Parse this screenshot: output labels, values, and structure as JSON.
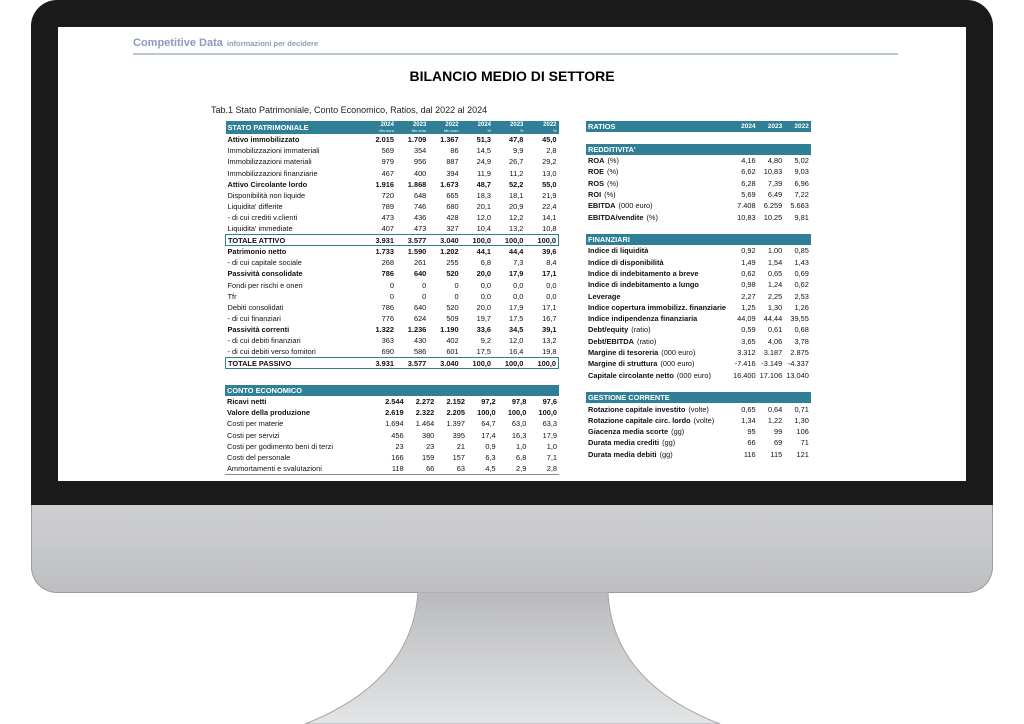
{
  "header": {
    "brand": "Competitive Data",
    "tagline": "informazioni per decidere",
    "title": "BILANCIO MEDIO DI SETTORE",
    "subtitle": "Tab.1 Stato Patrimoniale, Conto Economico, Ratios, dal 2022 al 2024"
  },
  "stato_patrimoniale": {
    "title": "STATO PATRIMONIALE",
    "columns": [
      {
        "year": "2024",
        "unit": "Mn euro"
      },
      {
        "year": "2023",
        "unit": "Mn euro"
      },
      {
        "year": "2022",
        "unit": "Mn euro"
      },
      {
        "year": "2024",
        "unit": "%"
      },
      {
        "year": "2023",
        "unit": "%"
      },
      {
        "year": "2022",
        "unit": "%"
      }
    ],
    "rows": [
      {
        "label": "Attivo immobilizzato",
        "style": "b",
        "values": [
          "2.015",
          "1.709",
          "1.367",
          "51,3",
          "47,8",
          "45,0"
        ]
      },
      {
        "label": "Immobilizzazioni immateriali",
        "values": [
          "569",
          "354",
          "86",
          "14,5",
          "9,9",
          "2,8"
        ]
      },
      {
        "label": "Immobilizzazioni materiali",
        "values": [
          "979",
          "956",
          "887",
          "24,9",
          "26,7",
          "29,2"
        ]
      },
      {
        "label": "Immobilizzazioni finanziarie",
        "values": [
          "467",
          "400",
          "394",
          "11,9",
          "11,2",
          "13,0"
        ]
      },
      {
        "label": "Attivo Circolante  lordo",
        "style": "b",
        "values": [
          "1.916",
          "1.868",
          "1.673",
          "48,7",
          "52,2",
          "55,0"
        ]
      },
      {
        "label": "Disponibilità non liquide",
        "values": [
          "720",
          "648",
          "665",
          "18,3",
          "18,1",
          "21,9"
        ]
      },
      {
        "label": "Liquidita'  differite",
        "values": [
          "789",
          "746",
          "680",
          "20,1",
          "20,9",
          "22,4"
        ]
      },
      {
        "label": " - di cui crediti v.clienti",
        "values": [
          "473",
          "436",
          "428",
          "12,0",
          "12,2",
          "14,1"
        ]
      },
      {
        "label": "Liquidita'  immediate",
        "values": [
          "407",
          "473",
          "327",
          "10,4",
          "13,2",
          "10,8"
        ]
      },
      {
        "label": "TOTALE ATTIVO",
        "style": "tot",
        "values": [
          "3.931",
          "3.577",
          "3.040",
          "100,0",
          "100,0",
          "100,0"
        ]
      },
      {
        "label": "Patrimonio netto",
        "style": "b",
        "values": [
          "1.733",
          "1.590",
          "1.202",
          "44,1",
          "44,4",
          "39,6"
        ]
      },
      {
        "label": " - di cui capitale sociale",
        "values": [
          "268",
          "261",
          "255",
          "6,8",
          "7,3",
          "8,4"
        ]
      },
      {
        "label": "Passività consolidate",
        "style": "b",
        "values": [
          "786",
          "640",
          "520",
          "20,0",
          "17,9",
          "17,1"
        ]
      },
      {
        "label": "Fondi per rischi e oneri",
        "values": [
          "0",
          "0",
          "0",
          "0,0",
          "0,0",
          "0,0"
        ]
      },
      {
        "label": "Tfr",
        "values": [
          "0",
          "0",
          "0",
          "0,0",
          "0,0",
          "0,0"
        ]
      },
      {
        "label": "Debiti consolidati",
        "values": [
          "786",
          "640",
          "520",
          "20,0",
          "17,9",
          "17,1"
        ]
      },
      {
        "label": "- di cui finanziari",
        "values": [
          "776",
          "624",
          "509",
          "19,7",
          "17,5",
          "16,7"
        ]
      },
      {
        "label": "Passività correnti",
        "style": "b",
        "values": [
          "1.322",
          "1.236",
          "1.190",
          "33,6",
          "34,5",
          "39,1"
        ]
      },
      {
        "label": "- di cui debiti finanziari",
        "values": [
          "363",
          "430",
          "402",
          "9,2",
          "12,0",
          "13,2"
        ]
      },
      {
        "label": "- di cui debiti verso fornitori",
        "values": [
          "690",
          "586",
          "601",
          "17,5",
          "16,4",
          "19,8"
        ]
      },
      {
        "label": "TOTALE PASSIVO",
        "style": "tot",
        "values": [
          "3.931",
          "3.577",
          "3.040",
          "100,0",
          "100,0",
          "100,0"
        ]
      }
    ]
  },
  "conto_economico": {
    "title": "CONTO ECONOMICO",
    "rows": [
      {
        "label": "Ricavi netti",
        "style": "b",
        "values": [
          "2.544",
          "2.272",
          "2.152",
          "97,2",
          "97,8",
          "97,6"
        ]
      },
      {
        "label": "Valore della produzione",
        "style": "b",
        "values": [
          "2.619",
          "2.322",
          "2.205",
          "100,0",
          "100,0",
          "100,0"
        ]
      },
      {
        "label": "Costi per materie",
        "values": [
          "1.694",
          "1.464",
          "1.397",
          "64,7",
          "63,0",
          "63,3"
        ]
      },
      {
        "label": "Costi per servizi",
        "values": [
          "456",
          "380",
          "395",
          "17,4",
          "16,3",
          "17,9"
        ]
      },
      {
        "label": "Costi per godimento beni di terzi",
        "values": [
          "23",
          "23",
          "21",
          "0,9",
          "1,0",
          "1,0"
        ]
      },
      {
        "label": "Costi del personale",
        "values": [
          "166",
          "159",
          "157",
          "6,3",
          "6,8",
          "7,1"
        ]
      },
      {
        "label": "Ammortamenti e svalutazioni",
        "values": [
          "118",
          "66",
          "63",
          "4,5",
          "2,9",
          "2,8"
        ]
      }
    ]
  },
  "ratios": {
    "title": "RATIOS",
    "years": [
      "2024",
      "2023",
      "2022"
    ],
    "sections": [
      {
        "title": "REDDITIVITA'",
        "rows": [
          {
            "label": "ROA",
            "unit": "(%)",
            "values": [
              "4,16",
              "4,80",
              "5,02"
            ]
          },
          {
            "label": "ROE",
            "unit": "(%)",
            "values": [
              "6,62",
              "10,83",
              "9,03"
            ]
          },
          {
            "label": "ROS",
            "unit": "(%)",
            "values": [
              "6,28",
              "7,39",
              "6,96"
            ]
          },
          {
            "label": "ROI",
            "unit": "(%)",
            "values": [
              "5,69",
              "6,49",
              "7,22"
            ]
          },
          {
            "label": "EBITDA",
            "unit": "(000 euro)",
            "values": [
              "7.408",
              "6.259",
              "5.663"
            ]
          },
          {
            "label": "EBITDA/vendite",
            "unit": "(%)",
            "values": [
              "10,83",
              "10,25",
              "9,81"
            ]
          }
        ]
      },
      {
        "title": "FINANZIARI",
        "rows": [
          {
            "label": "Indice di liquidità",
            "unit": "",
            "values": [
              "0,92",
              "1,00",
              "0,85"
            ]
          },
          {
            "label": "Indice di disponibilità",
            "unit": "",
            "values": [
              "1,49",
              "1,54",
              "1,43"
            ]
          },
          {
            "label": "Indice di indebitamento a breve",
            "unit": "",
            "values": [
              "0,62",
              "0,65",
              "0,69"
            ]
          },
          {
            "label": "Indice di indebitamento a lungo",
            "unit": "",
            "values": [
              "0,98",
              "1,24",
              "0,62"
            ]
          },
          {
            "label": "Leverage",
            "unit": "",
            "values": [
              "2,27",
              "2,25",
              "2,53"
            ]
          },
          {
            "label": "Indice copertura immobilizz. finanziarie",
            "unit": "",
            "values": [
              "1,25",
              "1,30",
              "1,26"
            ]
          },
          {
            "label": "Indice indipendenza finanziaria",
            "unit": "",
            "values": [
              "44,09",
              "44,44",
              "39,55"
            ]
          },
          {
            "label": "Debt/equity",
            "unit": "(ratio)",
            "values": [
              "0,59",
              "0,61",
              "0,68"
            ]
          },
          {
            "label": "Debt/EBITDA",
            "unit": "(ratio)",
            "values": [
              "3,65",
              "4,06",
              "3,78"
            ]
          },
          {
            "label": "Margine di tesoreria",
            "unit": "(000 euro)",
            "values": [
              "3.312",
              "3.187",
              "2.875"
            ]
          },
          {
            "label": "Margine di struttura",
            "unit": "(000 euro)",
            "values": [
              "-7.416",
              "-3.149",
              "-4.337"
            ]
          },
          {
            "label": "Capitale circolante netto",
            "unit": "(000 euro)",
            "values": [
              "16.400",
              "17.106",
              "13.040"
            ]
          }
        ]
      },
      {
        "title": "GESTIONE CORRENTE",
        "rows": [
          {
            "label": "Rotazione capitale investito",
            "unit": "(volte)",
            "values": [
              "0,65",
              "0,64",
              "0,71"
            ]
          },
          {
            "label": "Rotazione capitale circ. lordo",
            "unit": "(volte)",
            "values": [
              "1,34",
              "1,22",
              "1,30"
            ]
          },
          {
            "label": "Giacenza media scorte",
            "unit": "(gg)",
            "values": [
              "95",
              "99",
              "106"
            ]
          },
          {
            "label": "Durata media crediti",
            "unit": "(gg)",
            "values": [
              "66",
              "69",
              "71"
            ]
          },
          {
            "label": "Durata media debiti",
            "unit": "(gg)",
            "values": [
              "116",
              "115",
              "121"
            ]
          }
        ]
      }
    ]
  }
}
